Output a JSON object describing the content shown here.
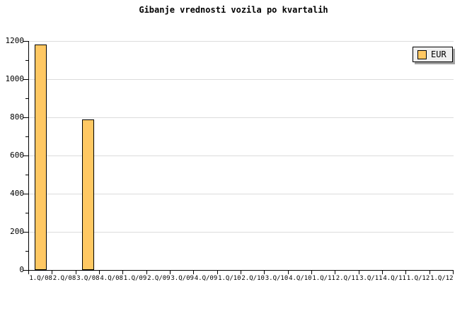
{
  "title": "Gibanje vrednosti vozila po kvartalih",
  "legend": {
    "label": "EUR"
  },
  "colors": {
    "bar_fill": "#FFC863",
    "bar_border": "#000000",
    "gridline": "#DCDCDC",
    "axis": "#000000",
    "text": "#000000",
    "background": "#FFFFFF",
    "legend_bg": "#EFEFEF",
    "legend_border": "#000000",
    "legend_shadow": "#A0A0A0"
  },
  "chart_data": {
    "type": "bar",
    "title": "Gibanje vrednosti vozila po kvartalih",
    "categories": [
      "1.Q/08",
      "2.Q/08",
      "3.Q/08",
      "4.Q/08",
      "1.Q/09",
      "2.Q/09",
      "3.Q/09",
      "4.Q/09",
      "1.Q/10",
      "2.Q/10",
      "3.Q/10",
      "4.Q/10",
      "1.Q/11",
      "2.Q/11",
      "3.Q/11",
      "4.Q/11",
      "1.Q/12",
      "1.Q/12"
    ],
    "series": [
      {
        "name": "EUR",
        "values": [
          1180,
          null,
          790,
          null,
          null,
          null,
          null,
          null,
          null,
          null,
          null,
          null,
          null,
          null,
          null,
          null,
          null,
          null
        ]
      }
    ],
    "xlabel": "",
    "ylabel": "",
    "ylim": [
      0,
      1200
    ],
    "y_major_step": 200,
    "y_minor_step": 100,
    "grid": "horizontal-major",
    "legend_position": "top-right"
  }
}
